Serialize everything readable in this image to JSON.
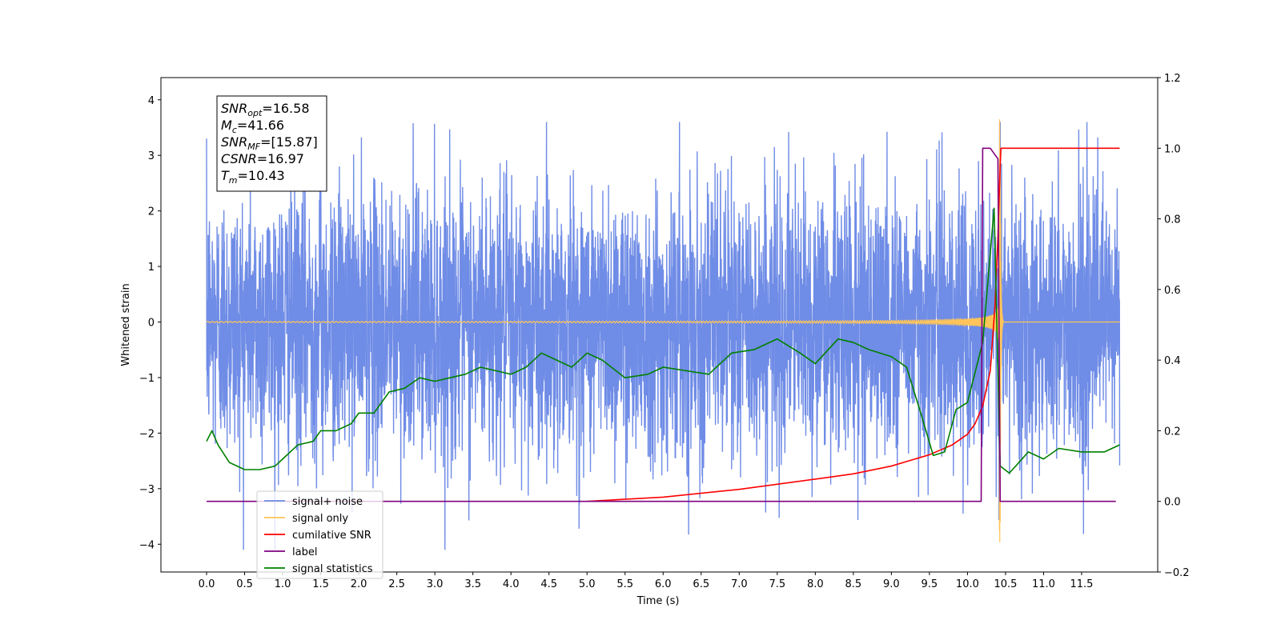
{
  "chart_data": {
    "type": "line",
    "xlabel": "Time (s)",
    "ylabel_left": "Whitened strain",
    "ylabel_right": "",
    "xlim": [
      -0.6,
      12.5
    ],
    "ylim_left": [
      -4.5,
      4.4
    ],
    "ylim_right": [
      -0.2,
      1.2
    ],
    "xticks": [
      0.0,
      0.5,
      1.0,
      1.5,
      2.0,
      2.5,
      3.0,
      3.5,
      4.0,
      4.5,
      5.0,
      5.5,
      6.0,
      6.5,
      7.0,
      7.5,
      8.0,
      8.5,
      9.0,
      9.5,
      10.0,
      10.5,
      11.0,
      11.5
    ],
    "xtick_labels": [
      "0.0",
      "0.5",
      "1.0",
      "1.5",
      "2.0",
      "2.5",
      "3.0",
      "3.5",
      "4.0",
      "4.5",
      "5.0",
      "5.5",
      "6.0",
      "6.5",
      "7.0",
      "7.5",
      "8.0",
      "8.5",
      "9.0",
      "9.5",
      "10.0",
      "10.5",
      "11.0",
      "11.5"
    ],
    "yticks_left": [
      -4,
      -3,
      -2,
      -1,
      0,
      1,
      2,
      3,
      4
    ],
    "ytick_labels_left": [
      "−4",
      "−3",
      "−2",
      "−1",
      "0",
      "1",
      "2",
      "3",
      "4"
    ],
    "yticks_right": [
      -0.2,
      0.0,
      0.2,
      0.4,
      0.6,
      0.8,
      1.0,
      1.2
    ],
    "ytick_labels_right": [
      "−0.2",
      "0.0",
      "0.2",
      "0.4",
      "0.6",
      "0.8",
      "1.0",
      "1.2"
    ],
    "grid": false,
    "legend_placement": "lower-left",
    "series": [
      {
        "name": "signal+ noise",
        "axis": "left",
        "color": "#6f8ce6",
        "description_kind": "noise",
        "x_range": [
          0.0,
          12.0
        ],
        "typical_amplitude": 1.4,
        "peak_max": 3.6,
        "peak_min": -4.1
      },
      {
        "name": "signal only",
        "axis": "left",
        "color": "#ffc55a",
        "description_kind": "chirp",
        "x_range": [
          0.0,
          12.0
        ],
        "merger_time": 10.43,
        "peak_max": 4.0,
        "peak_min": -3.6
      },
      {
        "name": "cumilative SNR",
        "axis": "right",
        "color": "#ff0000",
        "points": [
          [
            5.0,
            0.0
          ],
          [
            6.0,
            0.012
          ],
          [
            7.0,
            0.034
          ],
          [
            8.0,
            0.063
          ],
          [
            8.5,
            0.078
          ],
          [
            9.0,
            0.1
          ],
          [
            9.5,
            0.132
          ],
          [
            9.8,
            0.16
          ],
          [
            10.0,
            0.19
          ],
          [
            10.1,
            0.22
          ],
          [
            10.2,
            0.27
          ],
          [
            10.3,
            0.37
          ],
          [
            10.36,
            0.55
          ],
          [
            10.4,
            0.75
          ],
          [
            10.43,
            0.95
          ],
          [
            10.44,
            1.0
          ],
          [
            12.0,
            1.0
          ]
        ]
      },
      {
        "name": "label",
        "axis": "right",
        "color": "#800080",
        "points": [
          [
            0.0,
            0.0
          ],
          [
            10.18,
            0.0
          ],
          [
            10.2,
            1.0
          ],
          [
            10.3,
            1.0
          ],
          [
            10.4,
            0.97
          ],
          [
            10.43,
            0.0
          ],
          [
            11.95,
            0.0
          ]
        ]
      },
      {
        "name": "signal statistics",
        "axis": "right",
        "color": "#008000",
        "points": [
          [
            0.0,
            0.17
          ],
          [
            0.07,
            0.2
          ],
          [
            0.15,
            0.16
          ],
          [
            0.3,
            0.11
          ],
          [
            0.5,
            0.09
          ],
          [
            0.7,
            0.09
          ],
          [
            0.9,
            0.1
          ],
          [
            1.0,
            0.12
          ],
          [
            1.2,
            0.16
          ],
          [
            1.4,
            0.17
          ],
          [
            1.5,
            0.2
          ],
          [
            1.7,
            0.2
          ],
          [
            1.9,
            0.22
          ],
          [
            2.0,
            0.25
          ],
          [
            2.2,
            0.25
          ],
          [
            2.4,
            0.31
          ],
          [
            2.6,
            0.32
          ],
          [
            2.8,
            0.35
          ],
          [
            3.0,
            0.34
          ],
          [
            3.2,
            0.35
          ],
          [
            3.4,
            0.36
          ],
          [
            3.6,
            0.38
          ],
          [
            3.8,
            0.37
          ],
          [
            4.0,
            0.36
          ],
          [
            4.2,
            0.38
          ],
          [
            4.4,
            0.42
          ],
          [
            4.6,
            0.4
          ],
          [
            4.8,
            0.38
          ],
          [
            5.0,
            0.42
          ],
          [
            5.2,
            0.4
          ],
          [
            5.5,
            0.35
          ],
          [
            5.8,
            0.36
          ],
          [
            6.0,
            0.38
          ],
          [
            6.3,
            0.37
          ],
          [
            6.6,
            0.36
          ],
          [
            6.9,
            0.42
          ],
          [
            7.2,
            0.43
          ],
          [
            7.5,
            0.46
          ],
          [
            7.8,
            0.42
          ],
          [
            8.0,
            0.39
          ],
          [
            8.3,
            0.46
          ],
          [
            8.5,
            0.45
          ],
          [
            8.7,
            0.43
          ],
          [
            9.0,
            0.41
          ],
          [
            9.2,
            0.38
          ],
          [
            9.4,
            0.24
          ],
          [
            9.55,
            0.13
          ],
          [
            9.7,
            0.14
          ],
          [
            9.85,
            0.26
          ],
          [
            10.0,
            0.28
          ],
          [
            10.2,
            0.45
          ],
          [
            10.35,
            0.83
          ],
          [
            10.43,
            0.1
          ],
          [
            10.55,
            0.08
          ],
          [
            10.8,
            0.14
          ],
          [
            11.0,
            0.12
          ],
          [
            11.2,
            0.15
          ],
          [
            11.5,
            0.14
          ],
          [
            11.8,
            0.14
          ],
          [
            12.0,
            0.16
          ]
        ]
      }
    ],
    "annotation": {
      "lines": [
        {
          "base": "SNR",
          "sub": "opt",
          "value": "=16.58"
        },
        {
          "base": "M",
          "sub": "c",
          "value": "=41.66"
        },
        {
          "base": "SNR",
          "sub": "MF",
          "value": "=[15.87]"
        },
        {
          "base": "CSNR",
          "sub": "",
          "value": "=16.97"
        },
        {
          "base": "T",
          "sub": "m",
          "value": "=10.43"
        }
      ]
    },
    "legend": [
      "signal+ noise",
      "signal only",
      "cumilative SNR",
      "label",
      "signal statistics"
    ]
  }
}
